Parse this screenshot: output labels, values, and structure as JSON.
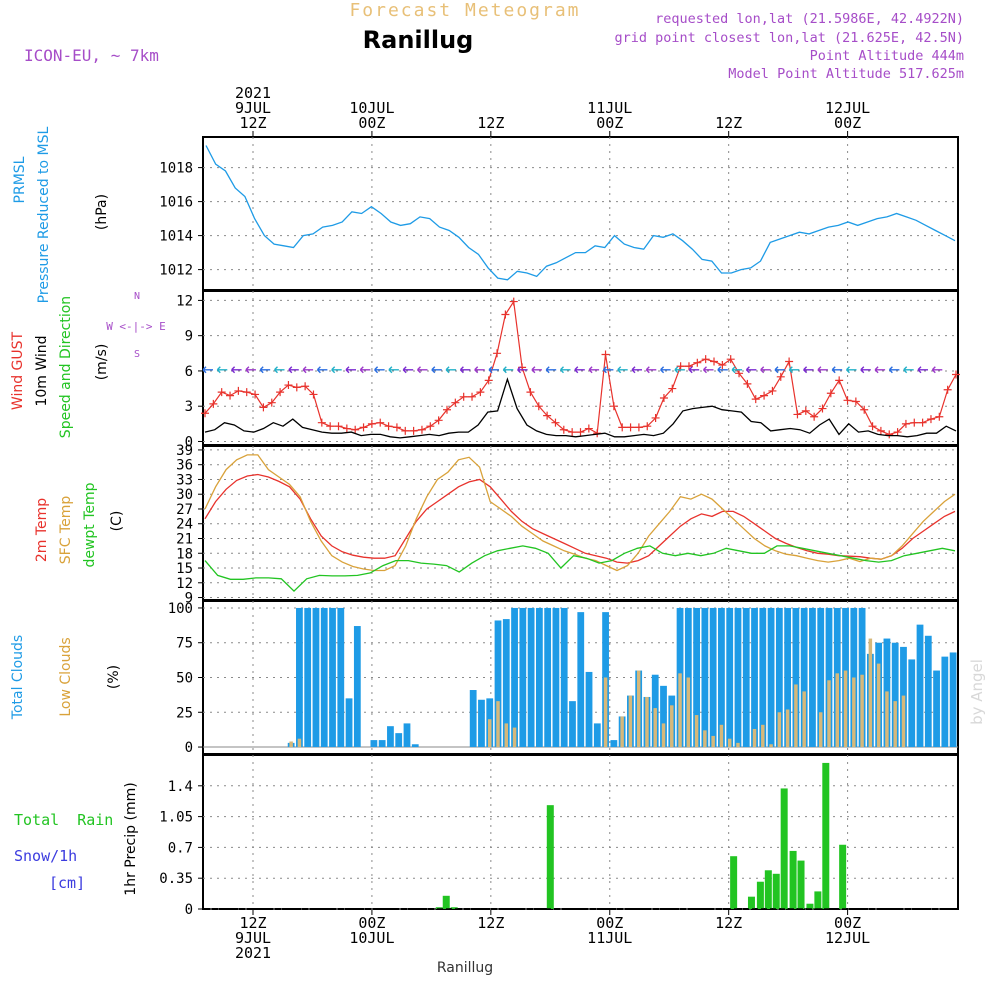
{
  "header": {
    "product_title": "Forecast Meteogram",
    "location_title": "Ranillug",
    "model": "ICON-EU, ~ 7km",
    "requested": "requested lon,lat (21.5986E, 42.4922N)",
    "closest": "grid point closest lon,lat (21.625E, 42.5N)",
    "point_alt": "Point Altitude 444m",
    "model_alt": "Model Point Altitude 517.625m",
    "footer_location": "Ranillug",
    "watermark": "by Angel"
  },
  "time_axis": {
    "top_labels": [
      {
        "idx": 0,
        "lines": [
          "2021",
          "9JUL",
          "12Z"
        ]
      },
      {
        "idx": 1,
        "lines": [
          "10JUL",
          "00Z"
        ]
      },
      {
        "idx": 2,
        "lines": [
          "12Z"
        ]
      },
      {
        "idx": 3,
        "lines": [
          "11JUL",
          "00Z"
        ]
      },
      {
        "idx": 4,
        "lines": [
          "12Z"
        ]
      },
      {
        "idx": 5,
        "lines": [
          "12JUL",
          "00Z"
        ]
      }
    ],
    "bottom_labels": [
      {
        "idx": 0,
        "lines": [
          "12Z",
          "9JUL",
          "2021"
        ]
      },
      {
        "idx": 1,
        "lines": [
          "00Z",
          "10JUL"
        ]
      },
      {
        "idx": 2,
        "lines": [
          "12Z"
        ]
      },
      {
        "idx": 3,
        "lines": [
          "00Z",
          "11JUL"
        ]
      },
      {
        "idx": 4,
        "lines": [
          "12Z"
        ]
      },
      {
        "idx": 5,
        "lines": [
          "00Z",
          "12JUL"
        ]
      }
    ],
    "hours_offset": [
      0,
      12,
      24,
      36,
      48,
      60
    ]
  },
  "panel_labels": {
    "pressure": [
      "PRMSL",
      "Pressure Reduced to MSL",
      "(hPa)"
    ],
    "wind": [
      "Wind GUST",
      "10m Wind",
      "Speed and Direction",
      "(m/s)"
    ],
    "compass": [
      "N",
      "W <-|-> E",
      "S"
    ],
    "temp": [
      "2m Temp",
      "SFC Temp",
      "dewpt Temp",
      "(C)"
    ],
    "clouds": [
      "Total Clouds",
      "Low Clouds",
      "(%)"
    ],
    "precip": [
      "Total  Rain",
      "Snow/1h",
      "[cm]",
      "1hr Precip (mm)"
    ]
  },
  "colors": {
    "pressure": "#1e9be6",
    "gust": "#e8322c",
    "wind": "#000000",
    "t2m": "#e8322c",
    "sfc": "#d9a23a",
    "dewpt": "#22c422",
    "total_clouds": "#1e9be6",
    "low_clouds": "#d6b87a",
    "rain": "#22c422",
    "snow": "#3b3bdf",
    "purple_text": "#a64dc8",
    "title_orange": "#e8c078"
  },
  "chart_data": [
    {
      "type": "line",
      "title": "PRMSL Pressure Reduced to MSL",
      "ylabel": "(hPa)",
      "x": "hours from 9JUL 06Z",
      "ylim": [
        1010.8,
        1019.8
      ],
      "yticks": [
        "1012",
        "1014",
        "1016",
        "1018"
      ],
      "series": [
        {
          "name": "PRMSL",
          "values": [
            1019.3,
            1018.2,
            1017.8,
            1016.8,
            1016.3,
            1015.0,
            1014.0,
            1013.5,
            1013.4,
            1013.3,
            1014.0,
            1014.1,
            1014.5,
            1014.6,
            1014.8,
            1015.4,
            1015.3,
            1015.7,
            1015.3,
            1014.8,
            1014.6,
            1014.7,
            1015.1,
            1015.0,
            1014.5,
            1014.3,
            1013.9,
            1013.3,
            1012.9,
            1012.1,
            1011.5,
            1011.4,
            1011.9,
            1011.8,
            1011.6,
            1012.2,
            1012.4,
            1012.7,
            1013.0,
            1013.0,
            1013.4,
            1013.3,
            1014.0,
            1013.5,
            1013.3,
            1013.2,
            1014.0,
            1013.9,
            1014.1,
            1013.7,
            1013.2,
            1012.6,
            1012.5,
            1011.8,
            1011.8,
            1012.0,
            1012.1,
            1012.5,
            1013.6,
            1013.8,
            1014.0,
            1014.2,
            1014.1,
            1014.3,
            1014.5,
            1014.6,
            1014.8,
            1014.6,
            1014.8,
            1015.0,
            1015.1,
            1015.3,
            1015.1,
            1014.9,
            1014.6,
            1014.3,
            1014.0,
            1013.7
          ]
        }
      ]
    },
    {
      "type": "line",
      "title": "Wind GUST / 10m Wind Speed and Direction",
      "ylabel": "(m/s)",
      "ylim": [
        -0.3,
        12.8
      ],
      "yticks": [
        "0",
        "3",
        "6",
        "9",
        "12"
      ],
      "series": [
        {
          "name": "Wind GUST",
          "values": [
            2.4,
            3.2,
            4.2,
            3.9,
            4.3,
            4.2,
            4.0,
            2.9,
            3.3,
            4.2,
            4.8,
            4.6,
            4.7,
            4.0,
            1.6,
            1.3,
            1.3,
            1.1,
            1.0,
            1.2,
            1.5,
            1.6,
            1.3,
            1.2,
            0.9,
            0.9,
            1.0,
            1.3,
            1.8,
            2.7,
            3.3,
            3.8,
            3.8,
            4.2,
            5.2,
            7.5,
            10.8,
            11.9,
            6.3,
            4.2,
            3.0,
            2.2,
            1.6,
            1.0,
            0.8,
            0.8,
            1.1,
            0.7,
            7.4,
            3.0,
            1.2,
            1.2,
            1.2,
            1.3,
            2.0,
            3.7,
            4.5,
            6.4,
            6.4,
            6.7,
            7.0,
            6.8,
            6.5,
            7.0,
            5.8,
            4.9,
            3.6,
            3.9,
            4.3,
            5.5,
            6.8,
            2.3,
            2.6,
            2.1,
            2.8,
            4.1,
            5.2,
            3.5,
            3.4,
            2.7,
            1.3,
            0.9,
            0.6,
            0.8,
            1.5,
            1.6,
            1.6,
            1.9,
            2.1,
            4.4,
            5.7
          ]
        },
        {
          "name": "10m Wind",
          "values": [
            0.8,
            1.0,
            1.6,
            1.4,
            0.9,
            0.8,
            1.1,
            1.6,
            1.3,
            1.9,
            1.2,
            1.0,
            0.8,
            0.7,
            0.7,
            0.8,
            0.5,
            0.6,
            0.6,
            0.4,
            0.3,
            0.4,
            0.5,
            0.6,
            0.5,
            0.7,
            0.8,
            0.8,
            1.4,
            2.5,
            2.6,
            5.3,
            2.8,
            1.4,
            0.9,
            0.6,
            0.5,
            0.5,
            0.4,
            0.5,
            0.6,
            0.7,
            0.4,
            0.4,
            0.5,
            0.6,
            0.5,
            0.7,
            1.5,
            2.6,
            2.8,
            2.9,
            3.0,
            2.7,
            2.6,
            2.5,
            1.7,
            1.6,
            0.9,
            1.0,
            1.1,
            1.0,
            0.7,
            1.4,
            1.9,
            0.6,
            1.5,
            0.8,
            0.9,
            0.6,
            0.5,
            0.5,
            0.4,
            0.5,
            0.7,
            0.7,
            1.3,
            0.9
          ]
        }
      ]
    },
    {
      "type": "line",
      "title": "2m Temp / SFC Temp / dewpt Temp",
      "ylabel": "(C)",
      "ylim": [
        8.5,
        39.8
      ],
      "yticks": [
        "9",
        "12",
        "15",
        "18",
        "21",
        "24",
        "27",
        "30",
        "33",
        "36",
        "39"
      ],
      "series": [
        {
          "name": "2m Temp",
          "x_end_hours": 76,
          "values": [
            25.0,
            28.5,
            31.0,
            32.8,
            33.7,
            34.0,
            33.5,
            32.6,
            31.5,
            29.0,
            25.0,
            21.5,
            19.5,
            18.3,
            17.6,
            17.2,
            17.0,
            17.0,
            17.5,
            21.0,
            24.5,
            27.0,
            28.5,
            30.0,
            31.5,
            32.5,
            33.0,
            31.5,
            29.0,
            26.5,
            24.5,
            23.0,
            22.0,
            21.0,
            20.0,
            19.0,
            18.0,
            17.5,
            17.0,
            16.2,
            16.0,
            16.5,
            17.5,
            19.5,
            21.5,
            23.5,
            25.0,
            26.0,
            25.5,
            26.5,
            26.5,
            25.5,
            24.0,
            22.5,
            21.0,
            20.0,
            19.2,
            18.5,
            18.0,
            17.8,
            17.5,
            17.4,
            17.3,
            17.0,
            16.8,
            17.5,
            19.0,
            21.0,
            22.5,
            24.0,
            25.5,
            26.5
          ]
        },
        {
          "name": "SFC Temp",
          "x_end_hours": 76,
          "values": [
            27.0,
            31.5,
            35.0,
            37.0,
            38.0,
            38.0,
            35.0,
            33.5,
            32.0,
            29.5,
            24.5,
            20.5,
            17.5,
            16.2,
            15.3,
            14.8,
            14.5,
            14.5,
            15.5,
            19.5,
            25.0,
            29.5,
            33.0,
            34.5,
            37.0,
            37.5,
            35.5,
            28.5,
            27.0,
            25.5,
            23.5,
            22.0,
            20.5,
            19.5,
            18.5,
            17.8,
            17.0,
            16.5,
            15.5,
            14.5,
            15.5,
            18.0,
            21.5,
            24.0,
            26.5,
            29.5,
            29.0,
            30.0,
            29.0,
            27.0,
            25.0,
            23.0,
            21.0,
            19.5,
            18.5,
            17.8,
            17.5,
            17.0,
            16.5,
            16.2,
            16.5,
            17.0,
            16.3,
            17.0,
            16.8,
            17.5,
            19.5,
            22.0,
            24.5,
            26.5,
            28.5,
            30.0
          ]
        },
        {
          "name": "dewpt Temp",
          "x_end_hours": 76,
          "values": [
            16.5,
            13.5,
            12.7,
            12.7,
            13.0,
            13.0,
            12.8,
            10.3,
            12.8,
            13.5,
            13.4,
            13.4,
            13.5,
            14.0,
            15.5,
            16.5,
            16.5,
            16.0,
            15.8,
            15.5,
            14.2,
            16.0,
            17.5,
            18.5,
            19.0,
            19.5,
            19.0,
            18.0,
            15.0,
            17.5,
            17.0,
            16.0,
            16.5,
            18.0,
            19.0,
            19.5,
            18.0,
            17.5,
            18.0,
            17.5,
            18.0,
            19.0,
            18.5,
            18.0,
            18.0,
            19.5,
            19.5,
            19.0,
            18.5,
            18.0,
            17.5,
            17.0,
            16.5,
            16.2,
            16.5,
            17.5,
            18.0,
            18.5,
            19.0,
            18.5
          ]
        }
      ]
    },
    {
      "type": "bar",
      "title": "Total Clouds / Low Clouds",
      "ylabel": "(%)",
      "ylim": [
        -5,
        105
      ],
      "yticks": [
        "0",
        "25",
        "50",
        "75",
        "100"
      ],
      "series": [
        {
          "name": "Total Clouds",
          "values": [
            0,
            0,
            0,
            0,
            0,
            0,
            0,
            0,
            0,
            0,
            3,
            100,
            100,
            100,
            100,
            100,
            100,
            35,
            87,
            0,
            5,
            5,
            15,
            10,
            17,
            2,
            0,
            0,
            0,
            0,
            0,
            0,
            41,
            34,
            35,
            91,
            92,
            100,
            100,
            100,
            100,
            100,
            100,
            100,
            33,
            97,
            54,
            17,
            97,
            5,
            22,
            37,
            55,
            36,
            52,
            44,
            37,
            100,
            100,
            100,
            100,
            100,
            100,
            100,
            100,
            100,
            100,
            100,
            100,
            100,
            100,
            100,
            100,
            100,
            100,
            100,
            100,
            100,
            100,
            100,
            67,
            75,
            78,
            75,
            72,
            63,
            88,
            80,
            55,
            65,
            68
          ]
        },
        {
          "name": "Low Clouds",
          "values": [
            0,
            0,
            0,
            0,
            0,
            0,
            0,
            0,
            0,
            0,
            4,
            6,
            0,
            0,
            0,
            0,
            0,
            0,
            0,
            0,
            0,
            0,
            0,
            0,
            0,
            0,
            0,
            0,
            0,
            0,
            0,
            0,
            0,
            0,
            20,
            33,
            17,
            14,
            0,
            0,
            0,
            0,
            0,
            0,
            0,
            0,
            0,
            0,
            50,
            0,
            22,
            37,
            55,
            36,
            28,
            17,
            30,
            53,
            50,
            23,
            12,
            8,
            16,
            6,
            3,
            0,
            13,
            16,
            2,
            25,
            27,
            45,
            40,
            0,
            25,
            48,
            53,
            55,
            50,
            52,
            78,
            60,
            40,
            33,
            37
          ]
        }
      ]
    },
    {
      "type": "bar",
      "title": "1hr Precip (mm)",
      "ylabel": "1hr Precip (mm)",
      "ylim": [
        0,
        1.75
      ],
      "yticks": [
        "0",
        "0.35",
        "0.7",
        "1.05",
        "1.4"
      ],
      "series": [
        {
          "name": "Total Rain",
          "values": [
            {
              "h": 24.8,
              "v": 0.02
            },
            {
              "h": 25.5,
              "v": 0.15
            },
            {
              "h": 26.3,
              "v": 0.02
            },
            {
              "h": 36.0,
              "v": 1.18
            },
            {
              "h": 54.5,
              "v": 0.6
            },
            {
              "h": 56.3,
              "v": 0.14
            },
            {
              "h": 57.2,
              "v": 0.31
            },
            {
              "h": 58.0,
              "v": 0.44
            },
            {
              "h": 58.8,
              "v": 0.4
            },
            {
              "h": 59.6,
              "v": 1.37
            },
            {
              "h": 60.5,
              "v": 0.66
            },
            {
              "h": 61.3,
              "v": 0.55
            },
            {
              "h": 62.2,
              "v": 0.06
            },
            {
              "h": 63.0,
              "v": 0.2
            },
            {
              "h": 63.8,
              "v": 1.66
            },
            {
              "h": 65.5,
              "v": 0.73
            }
          ]
        },
        {
          "name": "Snow/1h",
          "values": []
        }
      ]
    }
  ]
}
